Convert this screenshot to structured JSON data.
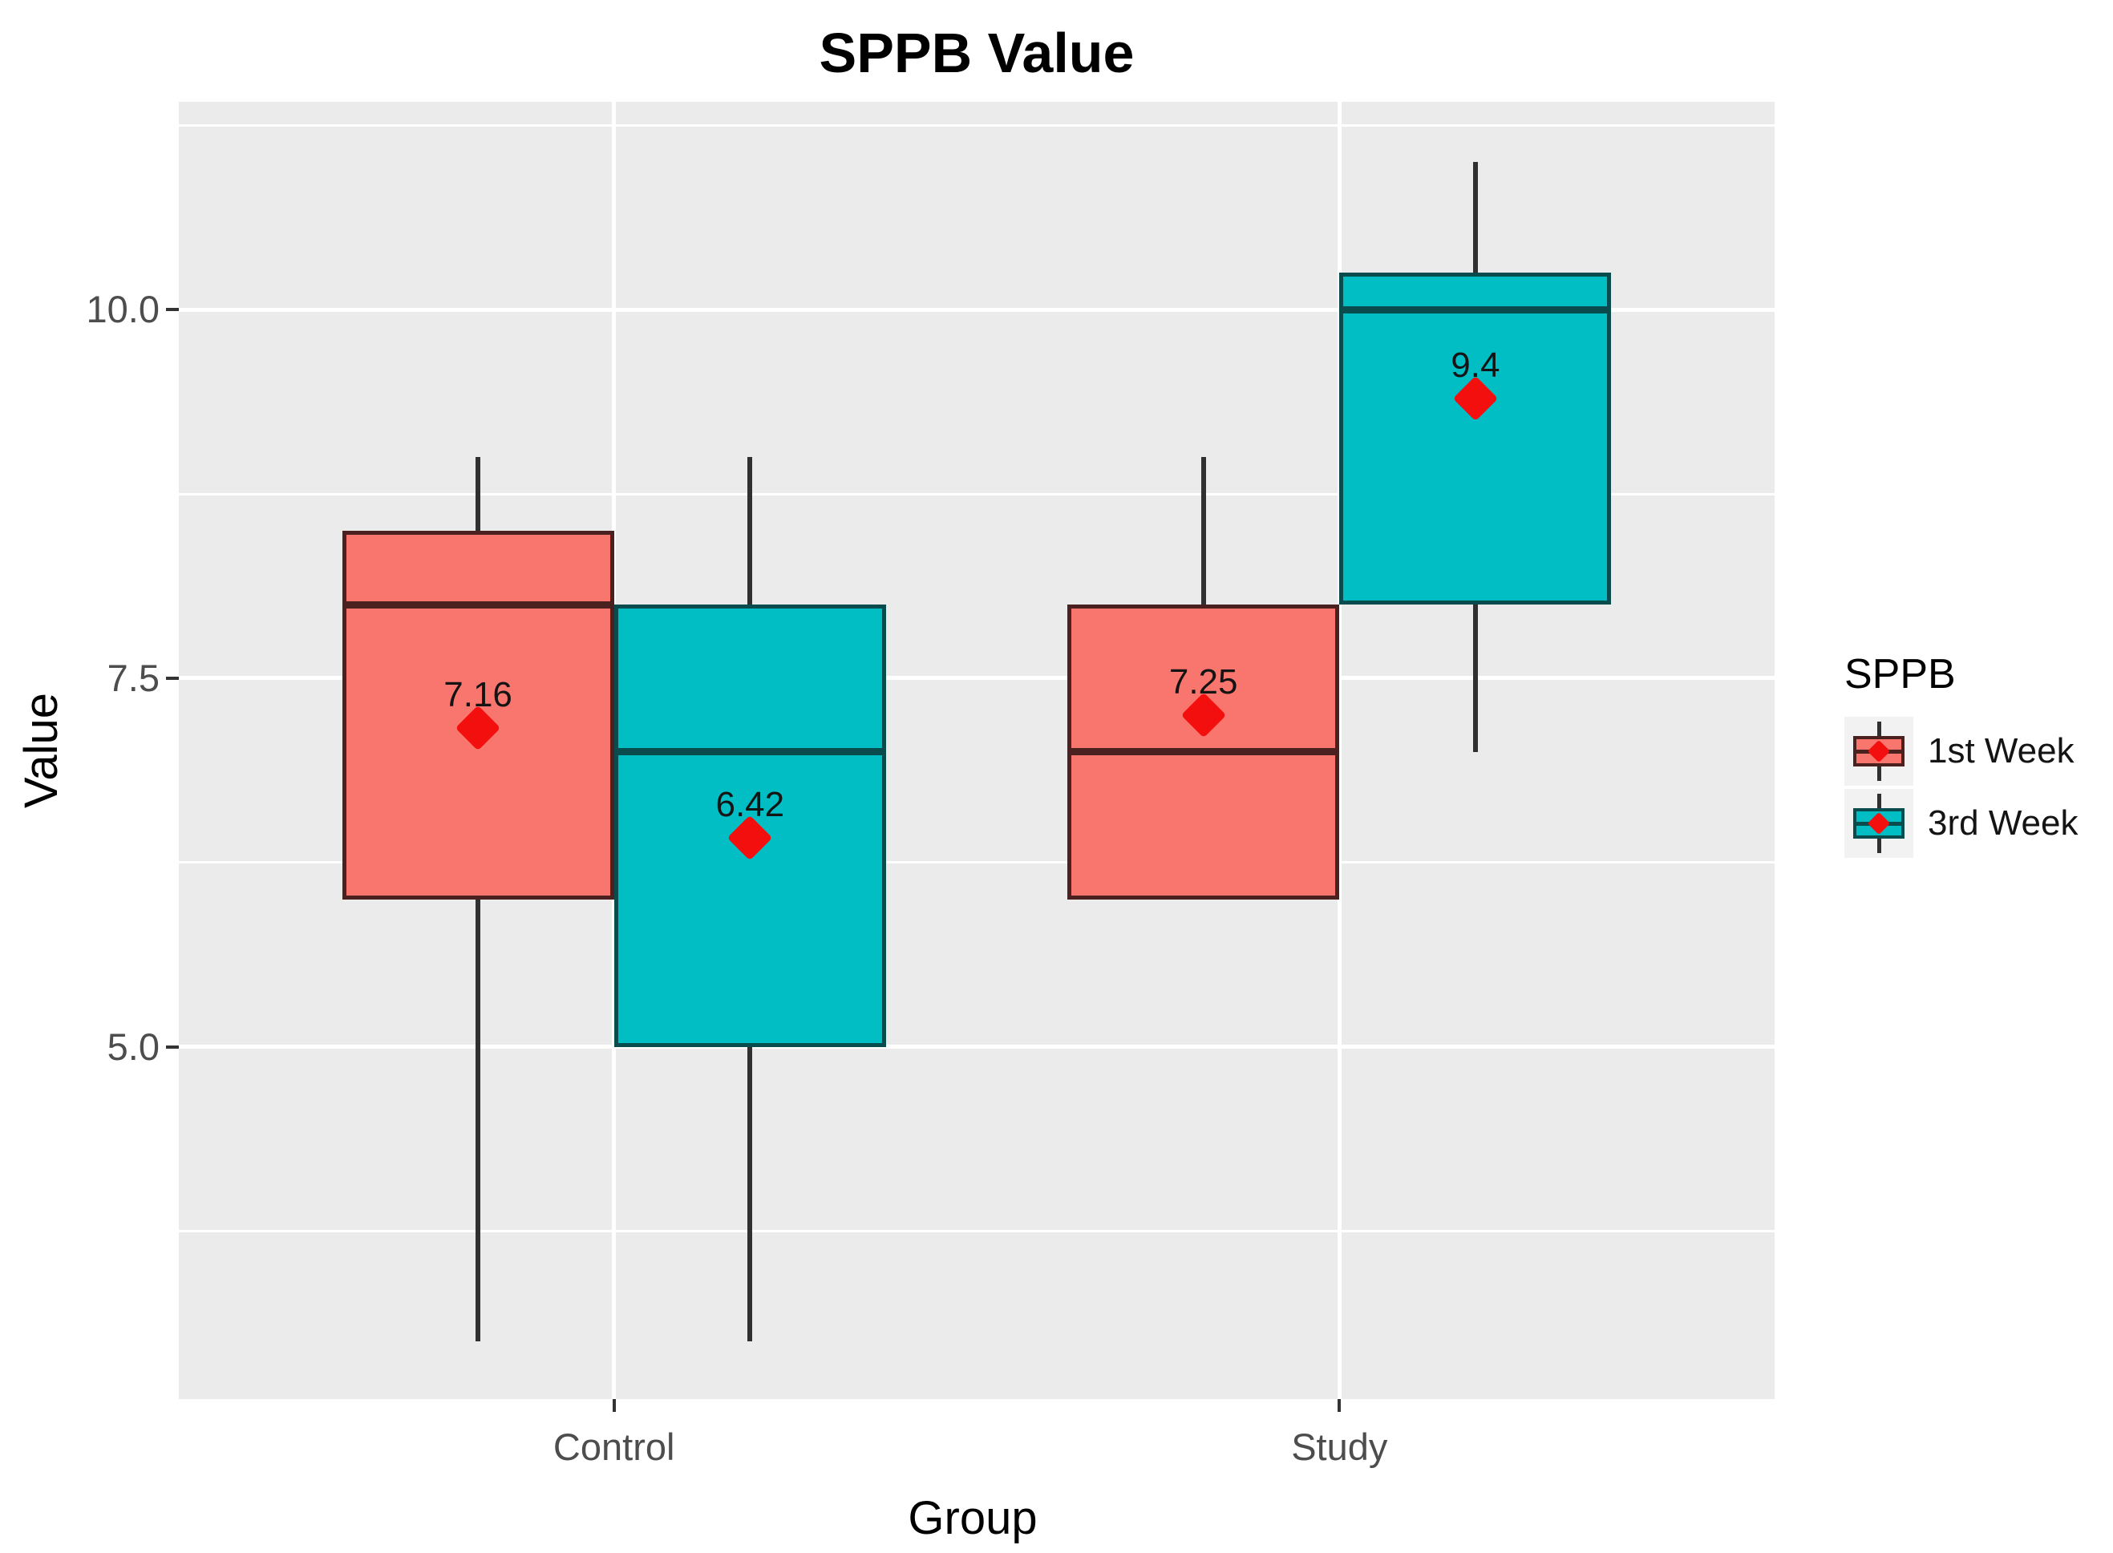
{
  "chart_data": {
    "type": "boxplot",
    "title": "SPPB Value",
    "xlabel": "Group",
    "ylabel": "Value",
    "categories": [
      "Control",
      "Study"
    ],
    "y_ticks": [
      {
        "value": 5.0,
        "label": "5.0"
      },
      {
        "value": 7.5,
        "label": "7.5"
      },
      {
        "value": 10.0,
        "label": "10.0"
      }
    ],
    "y_minor_gridlines": [
      3.75,
      6.25,
      8.75,
      11.25
    ],
    "ylim": [
      2.61,
      11.41
    ],
    "grid": true,
    "legend": {
      "title": "SPPB",
      "position": "right",
      "entries": [
        {
          "label": "1st Week",
          "fill": "#F8766D",
          "stroke": "#4A211E"
        },
        {
          "label": "3rd Week",
          "fill": "#00BEC4",
          "stroke": "#0A4B4E"
        }
      ]
    },
    "series": [
      {
        "name": "1st Week",
        "fill": "#F8766D",
        "stroke": "#4A211E",
        "boxes": [
          {
            "category": "Control",
            "whisker_low": 3.0,
            "q1": 6.0,
            "median": 8.0,
            "q3": 8.5,
            "whisker_high": 9.0,
            "mean": 7.16,
            "mean_label": "7.16"
          },
          {
            "category": "Study",
            "whisker_low": 6.0,
            "q1": 6.0,
            "median": 7.0,
            "q3": 8.0,
            "whisker_high": 9.0,
            "mean": 7.25,
            "mean_label": "7.25"
          }
        ]
      },
      {
        "name": "3rd Week",
        "fill": "#00BEC4",
        "stroke": "#0A4B4E",
        "boxes": [
          {
            "category": "Control",
            "whisker_low": 3.0,
            "q1": 5.0,
            "median": 7.0,
            "q3": 8.0,
            "whisker_high": 9.0,
            "mean": 6.42,
            "mean_label": "6.42"
          },
          {
            "category": "Study",
            "whisker_low": 7.0,
            "q1": 8.0,
            "median": 10.0,
            "q3": 10.25,
            "whisker_high": 11.0,
            "mean": 9.4,
            "mean_label": "9.4"
          }
        ]
      }
    ],
    "colors": {
      "panel_background": "#EBEBEB",
      "gridline": "#FFFFFF",
      "whisker": "#303030",
      "mean_diamond": "#F40F0F",
      "tick_label": "#4D4D4D",
      "tick_mark": "#333333",
      "mean_label_text": "#141414",
      "legend_key_background": "#F2F2F2"
    }
  }
}
